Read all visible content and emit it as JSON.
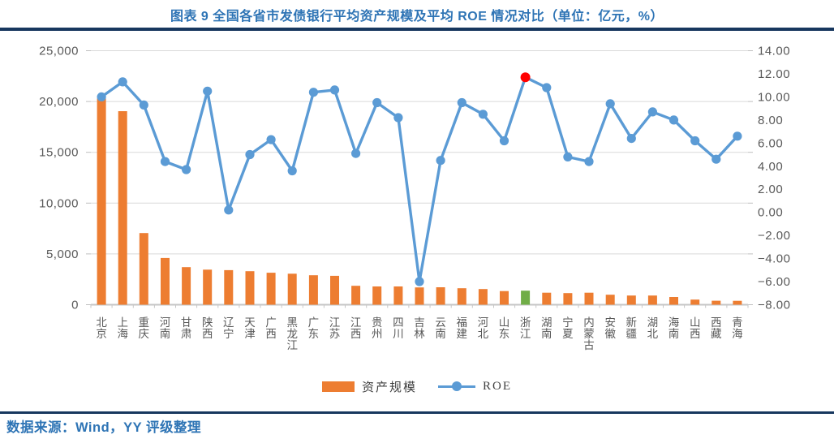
{
  "title": "图表 9 全国各省市发债银行平均资产规模及平均 ROE 情况对比（单位：亿元，%）",
  "footer": {
    "source": "数据来源：Wind，YY 评级整理"
  },
  "legend": [
    {
      "label": "资产规模",
      "type": "bar",
      "color": "#ED7D31"
    },
    {
      "label": "ROE",
      "type": "line",
      "color": "#5B9BD5"
    }
  ],
  "colors": {
    "bar": "#ED7D31",
    "bar_highlight": "#70AD47",
    "line": "#5B9BD5",
    "dot_highlight": "#FF0000",
    "title_blue": "#2E74B5",
    "divider_navy": "#17375E",
    "axis_text": "#595959",
    "gridline": "#D9D9D9"
  },
  "chart_data": {
    "type": "bar",
    "subtype": "combo-bar-line-dual-axis",
    "title": "图表 9 全国各省市发债银行平均资产规模及平均 ROE 情况对比（单位：亿元，%）",
    "grid": true,
    "legend_position": "bottom",
    "highlight_category": "浙江",
    "categories": [
      "北京",
      "上海",
      "重庆",
      "河南",
      "甘肃",
      "陕西",
      "辽宁",
      "天津",
      "广西",
      "黑龙江",
      "广东",
      "江苏",
      "江西",
      "贵州",
      "四川",
      "吉林",
      "云南",
      "福建",
      "河北",
      "山东",
      "浙江",
      "湖南",
      "宁夏",
      "内蒙古",
      "安徽",
      "新疆",
      "湖北",
      "海南",
      "山西",
      "西藏",
      "青海"
    ],
    "series": [
      {
        "name": "资产规模",
        "type": "bar",
        "axis": "left",
        "unit": "亿元",
        "color": "#ED7D31",
        "highlight": {
          "index": 20,
          "color": "#70AD47"
        },
        "values": [
          20300,
          19050,
          7050,
          4600,
          3700,
          3450,
          3400,
          3300,
          3150,
          3050,
          2900,
          2840,
          1860,
          1800,
          1800,
          1700,
          1720,
          1620,
          1540,
          1340,
          1380,
          1180,
          1140,
          1180,
          980,
          900,
          900,
          760,
          500,
          390,
          380
        ]
      },
      {
        "name": "ROE",
        "type": "line",
        "axis": "right",
        "unit": "%",
        "color": "#5B9BD5",
        "highlight": {
          "index": 20,
          "color": "#FF0000"
        },
        "values": [
          10.0,
          11.3,
          9.3,
          4.4,
          3.7,
          10.5,
          0.2,
          5.0,
          6.3,
          3.6,
          10.4,
          10.6,
          5.1,
          9.5,
          8.2,
          -6.0,
          4.5,
          9.5,
          8.5,
          6.2,
          11.7,
          10.8,
          4.8,
          4.4,
          9.4,
          6.4,
          8.7,
          8.0,
          6.2,
          4.6,
          6.6
        ]
      }
    ],
    "left_axis": {
      "min": 0,
      "max": 25000,
      "step": 5000,
      "tick_values": [
        25000,
        20000,
        15000,
        10000,
        5000,
        0
      ],
      "tick_labels": [
        "25,000",
        "20,000",
        "15,000",
        "10,000",
        "5,000",
        "0"
      ]
    },
    "right_axis": {
      "min": -8,
      "max": 14,
      "step": 2,
      "tick_values": [
        14,
        12,
        10,
        8,
        6,
        4,
        2,
        0,
        -2,
        -4,
        -6,
        -8
      ],
      "tick_labels": [
        "14.00",
        "12.00",
        "10.00",
        "8.00",
        "6.00",
        "4.00",
        "2.00",
        "0.00",
        "−2.00",
        "−4.00",
        "−6.00",
        "−8.00"
      ]
    }
  }
}
